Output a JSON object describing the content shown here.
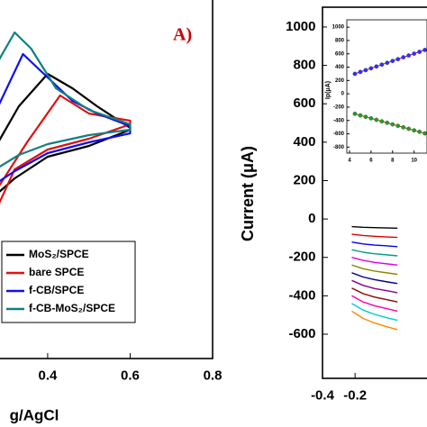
{
  "chart_data": [
    {
      "type": "line",
      "annotation": "A)",
      "x_label": "g/AgCl",
      "xlim": [
        0.28,
        0.8
      ],
      "ylim": [
        -100,
        100
      ],
      "xticks": [
        0.4,
        0.6,
        0.8
      ],
      "series": [
        {
          "name": "MoS₂/SPCE",
          "color": "#000000",
          "x": [
            0.28,
            0.33,
            0.4,
            0.46,
            0.52,
            0.6,
            0.6,
            0.5,
            0.4,
            0.32,
            0.28
          ],
          "values": [
            20,
            40,
            58,
            50,
            40,
            28,
            27,
            18,
            12,
            0,
            -8
          ]
        },
        {
          "name": "bare SPCE",
          "color": "#e01010",
          "x": [
            0.28,
            0.35,
            0.43,
            0.5,
            0.6,
            0.6,
            0.5,
            0.4,
            0.32,
            0.28
          ],
          "values": [
            -5,
            20,
            46,
            36,
            32,
            30,
            22,
            16,
            5,
            -15
          ]
        },
        {
          "name": "f-CB/SPCE",
          "color": "#1010ee",
          "x": [
            0.28,
            0.34,
            0.4,
            0.46,
            0.52,
            0.6,
            0.6,
            0.5,
            0.4,
            0.32,
            0.28
          ],
          "values": [
            40,
            69,
            56,
            43,
            36,
            29,
            25,
            20,
            14,
            4,
            -2
          ]
        },
        {
          "name": "f-CB-MoS₂/SPCE",
          "color": "#108080",
          "x": [
            0.28,
            0.32,
            0.36,
            0.42,
            0.5,
            0.6,
            0.6,
            0.5,
            0.4,
            0.33,
            0.28
          ],
          "values": [
            65,
            81,
            72,
            50,
            38,
            30,
            27,
            24,
            19,
            13,
            6
          ]
        }
      ]
    },
    {
      "type": "line",
      "y_label": "Current (μA)",
      "xlim": [
        -0.4,
        0.33
      ],
      "ylim": [
        -830,
        1103
      ],
      "xticks": [
        -0.4,
        -0.2
      ],
      "yticks": [
        1000,
        800,
        600,
        400,
        200,
        0,
        -200,
        -400,
        -600
      ],
      "x": [
        -0.22,
        -0.15,
        -0.08,
        0,
        0.06
      ],
      "series": [
        {
          "color": "#000000",
          "values": [
            -40,
            -43,
            -45,
            -47,
            -48
          ]
        },
        {
          "color": "#e00000",
          "values": [
            -80,
            -86,
            -90,
            -94,
            -96
          ]
        },
        {
          "color": "#0000ff",
          "values": [
            -120,
            -130,
            -136,
            -140,
            -144
          ]
        },
        {
          "color": "#00a080",
          "values": [
            -160,
            -173,
            -181,
            -187,
            -192
          ]
        },
        {
          "color": "#e000e0",
          "values": [
            -200,
            -216,
            -226,
            -234,
            -240
          ]
        },
        {
          "color": "#888800",
          "values": [
            -240,
            -259,
            -271,
            -281,
            -288
          ]
        },
        {
          "color": "#000088",
          "values": [
            -280,
            -302,
            -316,
            -328,
            -336
          ]
        },
        {
          "color": "#880088",
          "values": [
            -320,
            -346,
            -362,
            -374,
            -384
          ]
        },
        {
          "color": "#880000",
          "values": [
            -360,
            -389,
            -407,
            -421,
            -432
          ]
        },
        {
          "color": "#ff00aa",
          "values": [
            -400,
            -432,
            -452,
            -468,
            -480
          ]
        },
        {
          "color": "#00cccc",
          "values": [
            -440,
            -475,
            -497,
            -515,
            -528
          ]
        },
        {
          "color": "#ff8800",
          "values": [
            -480,
            -518,
            -542,
            -562,
            -576
          ]
        }
      ]
    },
    {
      "type": "scatter",
      "y_label": "Ip(μA)",
      "xlim": [
        3.75,
        11.2
      ],
      "ylim": [
        -890,
        1110
      ],
      "xticks": [
        4,
        6,
        8,
        10
      ],
      "yticks": [
        1000,
        800,
        600,
        400,
        200,
        0,
        -200,
        -400,
        -600,
        -800
      ],
      "x": [
        4.5,
        5,
        5.5,
        6,
        6.5,
        7,
        7.5,
        8,
        8.5,
        9,
        9.5,
        10,
        10.5,
        11
      ],
      "series": [
        {
          "color": "#3030ff",
          "line_color": "#c000c0",
          "values": [
            300,
            328,
            355,
            383,
            410,
            438,
            465,
            493,
            520,
            548,
            575,
            603,
            630,
            658
          ]
        },
        {
          "color": "#20a020",
          "line_color": "#e02020",
          "values": [
            -300,
            -323,
            -345,
            -368,
            -390,
            -413,
            -435,
            -458,
            -480,
            -503,
            -525,
            -548,
            -570,
            -593
          ]
        }
      ]
    }
  ]
}
